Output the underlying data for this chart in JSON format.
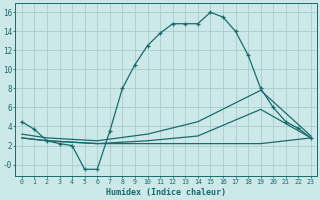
{
  "xlabel": "Humidex (Indice chaleur)",
  "bg_color": "#cce8e8",
  "grid_color": "#aacccc",
  "line_color": "#1a6b6b",
  "xlim": [
    -0.5,
    23.5
  ],
  "ylim": [
    -1.2,
    17
  ],
  "yticks": [
    0,
    2,
    4,
    6,
    8,
    10,
    12,
    14,
    16
  ],
  "ytick_labels": [
    "-0",
    "2",
    "4",
    "6",
    "8",
    "10",
    "12",
    "14",
    "16"
  ],
  "xticks": [
    0,
    1,
    2,
    3,
    4,
    5,
    6,
    7,
    8,
    9,
    10,
    11,
    12,
    13,
    14,
    15,
    16,
    17,
    18,
    19,
    20,
    21,
    22,
    23
  ],
  "curve1_x": [
    0,
    1,
    2,
    3,
    4,
    5,
    6,
    7,
    8,
    9,
    10,
    11,
    12,
    13,
    14,
    15,
    16,
    17,
    18,
    19,
    20,
    21,
    22,
    23
  ],
  "curve1_y": [
    4.5,
    3.7,
    2.5,
    2.2,
    2.0,
    -0.5,
    -0.5,
    3.5,
    8.0,
    10.5,
    12.5,
    13.8,
    14.8,
    14.8,
    14.8,
    16.0,
    15.5,
    14.0,
    11.5,
    8.0,
    6.0,
    4.5,
    3.8,
    2.8
  ],
  "curve2_x": [
    0,
    2,
    6,
    10,
    14,
    19,
    23
  ],
  "curve2_y": [
    2.8,
    2.5,
    2.2,
    2.5,
    3.0,
    5.8,
    2.8
  ],
  "curve3_x": [
    0,
    2,
    6,
    10,
    14,
    19,
    23
  ],
  "curve3_y": [
    3.2,
    2.8,
    2.5,
    3.2,
    4.5,
    7.8,
    3.0
  ],
  "curve4_x": [
    0,
    2,
    6,
    10,
    14,
    19,
    23
  ],
  "curve4_y": [
    2.8,
    2.5,
    2.2,
    2.2,
    2.2,
    2.2,
    2.8
  ],
  "figsize": [
    3.2,
    2.0
  ],
  "dpi": 100
}
